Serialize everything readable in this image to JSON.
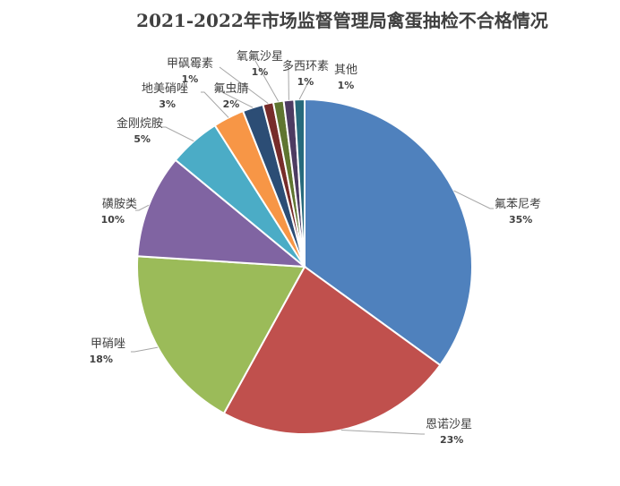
{
  "chart_data": {
    "type": "pie",
    "title": "2021-2022年市场监督管理局禽蛋抽检不合格情况",
    "legend": "none",
    "slices": [
      {
        "label": "氟苯尼考",
        "value": 35,
        "value_label": "35%",
        "color": "#4f81bd"
      },
      {
        "label": "恩诺沙星",
        "value": 23,
        "value_label": "23%",
        "color": "#c0504d"
      },
      {
        "label": "甲硝唑",
        "value": 18,
        "value_label": "18%",
        "color": "#9bbb59"
      },
      {
        "label": "磺胺类",
        "value": 10,
        "value_label": "10%",
        "color": "#8064a2"
      },
      {
        "label": "金刚烷胺",
        "value": 5,
        "value_label": "5%",
        "color": "#4bacc6"
      },
      {
        "label": "地美硝唑",
        "value": 3,
        "value_label": "3%",
        "color": "#f79646"
      },
      {
        "label": "氟虫腈",
        "value": 2,
        "value_label": "2%",
        "color": "#2c4d75"
      },
      {
        "label": "甲砜霉素",
        "value": 1,
        "value_label": "1%",
        "color": "#772c2a"
      },
      {
        "label": "氧氟沙星",
        "value": 1,
        "value_label": "1%",
        "color": "#5f7530"
      },
      {
        "label": "多西环素",
        "value": 1,
        "value_label": "1%",
        "color": "#4d3b62"
      },
      {
        "label": "其他",
        "value": 1,
        "value_label": "1%",
        "color": "#276a7c"
      }
    ]
  }
}
